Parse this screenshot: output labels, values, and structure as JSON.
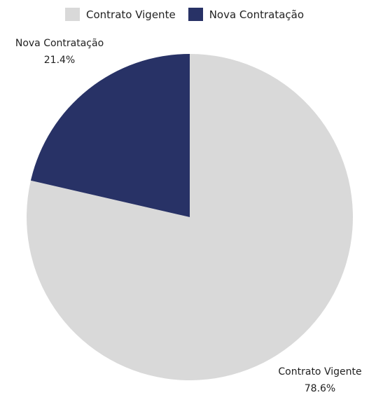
{
  "chart_data": {
    "type": "pie",
    "title": "",
    "categories": [
      "Contrato Vigente",
      "Nova Contratação"
    ],
    "values": [
      78.6,
      21.4
    ],
    "value_labels": [
      "78.6%",
      "21.4%"
    ],
    "colors": [
      "#d9d9d9",
      "#283266"
    ],
    "start_angle_deg": 0,
    "direction": "clockwise",
    "legend_position": "top-center"
  },
  "legend": {
    "items": [
      {
        "label": "Contrato Vigente",
        "color": "#d9d9d9"
      },
      {
        "label": "Nova Contratação",
        "color": "#283266"
      }
    ]
  }
}
